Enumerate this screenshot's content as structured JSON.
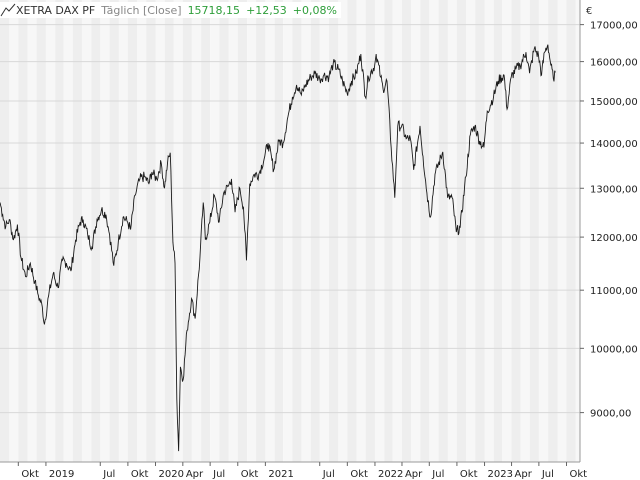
{
  "legend": {
    "name": "XETRA DAX PF",
    "frequency": "Täglich [Close]",
    "last_value": "15718,15",
    "change": "+12,53",
    "change_pct": "+0,08%"
  },
  "currency_symbol": "€",
  "colors": {
    "line": "#1a1a1a",
    "positive": "#2e9e3a",
    "band_dark": "#eeeeee",
    "band_light": "#f7f7f7",
    "grid": "#d8d8d8"
  },
  "chart_data": {
    "type": "line",
    "y_scale": "log",
    "ylim": [
      8300,
      17700
    ],
    "y_ticks": [
      9000,
      10000,
      11000,
      12000,
      13000,
      14000,
      15000,
      16000,
      17000
    ],
    "y_tick_labels": [
      "9000,00",
      "10000,00",
      "11000,00",
      "12000,00",
      "13000,00",
      "14000,00",
      "15000,00",
      "16000,00",
      "17000,00"
    ],
    "x_range": [
      "2018-08-01",
      "2023-11-15"
    ],
    "x_ticks": [
      {
        "date": "2018-10-01",
        "label": "Okt"
      },
      {
        "date": "2019-01-01",
        "label": "2019"
      },
      {
        "date": "2019-07-01",
        "label": "Jul"
      },
      {
        "date": "2019-10-01",
        "label": "Okt"
      },
      {
        "date": "2020-01-01",
        "label": "2020"
      },
      {
        "date": "2020-04-01",
        "label": "Apr"
      },
      {
        "date": "2020-07-01",
        "label": "Jul"
      },
      {
        "date": "2020-10-01",
        "label": "Okt"
      },
      {
        "date": "2021-01-01",
        "label": "2021"
      },
      {
        "date": "2021-07-01",
        "label": "Jul"
      },
      {
        "date": "2021-10-01",
        "label": "Okt"
      },
      {
        "date": "2022-01-01",
        "label": "2022"
      },
      {
        "date": "2022-04-01",
        "label": "Apr"
      },
      {
        "date": "2022-07-01",
        "label": "Jul"
      },
      {
        "date": "2022-10-01",
        "label": "Okt"
      },
      {
        "date": "2023-01-01",
        "label": "2023"
      },
      {
        "date": "2023-04-01",
        "label": "Apr"
      },
      {
        "date": "2023-07-01",
        "label": "Jul"
      },
      {
        "date": "2023-10-01",
        "label": "Okt"
      }
    ],
    "series": [
      {
        "points": [
          [
            "2018-08-01",
            12700
          ],
          [
            "2018-08-10",
            12450
          ],
          [
            "2018-08-20",
            12200
          ],
          [
            "2018-09-01",
            12350
          ],
          [
            "2018-09-15",
            11950
          ],
          [
            "2018-09-28",
            12250
          ],
          [
            "2018-10-10",
            11600
          ],
          [
            "2018-10-25",
            11250
          ],
          [
            "2018-11-10",
            11500
          ],
          [
            "2018-11-25",
            11150
          ],
          [
            "2018-12-07",
            10900
          ],
          [
            "2018-12-20",
            10700
          ],
          [
            "2018-12-27",
            10400
          ],
          [
            "2019-01-10",
            10900
          ],
          [
            "2019-01-25",
            11300
          ],
          [
            "2019-02-10",
            11050
          ],
          [
            "2019-02-25",
            11550
          ],
          [
            "2019-03-10",
            11500
          ],
          [
            "2019-03-25",
            11350
          ],
          [
            "2019-04-10",
            11950
          ],
          [
            "2019-04-25",
            12300
          ],
          [
            "2019-05-05",
            12350
          ],
          [
            "2019-05-20",
            12050
          ],
          [
            "2019-06-03",
            11800
          ],
          [
            "2019-06-20",
            12350
          ],
          [
            "2019-07-05",
            12550
          ],
          [
            "2019-07-20",
            12450
          ],
          [
            "2019-08-01",
            12050
          ],
          [
            "2019-08-15",
            11450
          ],
          [
            "2019-08-30",
            11900
          ],
          [
            "2019-09-15",
            12400
          ],
          [
            "2019-09-30",
            12300
          ],
          [
            "2019-10-10",
            12150
          ],
          [
            "2019-10-25",
            12850
          ],
          [
            "2019-11-10",
            13200
          ],
          [
            "2019-11-25",
            13250
          ],
          [
            "2019-12-10",
            13100
          ],
          [
            "2019-12-20",
            13350
          ],
          [
            "2020-01-05",
            13200
          ],
          [
            "2020-01-20",
            13550
          ],
          [
            "2020-01-31",
            13000
          ],
          [
            "2020-02-10",
            13550
          ],
          [
            "2020-02-19",
            13780
          ],
          [
            "2020-02-28",
            11900
          ],
          [
            "2020-03-06",
            11500
          ],
          [
            "2020-03-12",
            9200
          ],
          [
            "2020-03-18",
            8450
          ],
          [
            "2020-03-24",
            9700
          ],
          [
            "2020-04-02",
            9500
          ],
          [
            "2020-04-15",
            10300
          ],
          [
            "2020-04-30",
            10850
          ],
          [
            "2020-05-12",
            10500
          ],
          [
            "2020-05-28",
            11600
          ],
          [
            "2020-06-08",
            12700
          ],
          [
            "2020-06-15",
            11950
          ],
          [
            "2020-06-30",
            12300
          ],
          [
            "2020-07-15",
            12850
          ],
          [
            "2020-07-31",
            12300
          ],
          [
            "2020-08-15",
            12900
          ],
          [
            "2020-08-31",
            13050
          ],
          [
            "2020-09-10",
            13200
          ],
          [
            "2020-09-22",
            12500
          ],
          [
            "2020-10-08",
            13000
          ],
          [
            "2020-10-20",
            12600
          ],
          [
            "2020-10-30",
            11550
          ],
          [
            "2020-11-10",
            13100
          ],
          [
            "2020-11-25",
            13300
          ],
          [
            "2020-12-10",
            13300
          ],
          [
            "2020-12-30",
            13700
          ],
          [
            "2021-01-10",
            14000
          ],
          [
            "2021-01-29",
            13400
          ],
          [
            "2021-02-15",
            14050
          ],
          [
            "2021-03-01",
            14000
          ],
          [
            "2021-03-15",
            14550
          ],
          [
            "2021-04-01",
            15100
          ],
          [
            "2021-04-15",
            15400
          ],
          [
            "2021-05-01",
            15150
          ],
          [
            "2021-05-15",
            15400
          ],
          [
            "2021-06-01",
            15600
          ],
          [
            "2021-06-15",
            15700
          ],
          [
            "2021-07-01",
            15550
          ],
          [
            "2021-07-15",
            15650
          ],
          [
            "2021-08-01",
            15600
          ],
          [
            "2021-08-15",
            15950
          ],
          [
            "2021-09-01",
            15800
          ],
          [
            "2021-09-15",
            15500
          ],
          [
            "2021-09-30",
            15200
          ],
          [
            "2021-10-15",
            15500
          ],
          [
            "2021-10-31",
            15700
          ],
          [
            "2021-11-15",
            16200
          ],
          [
            "2021-11-30",
            15100
          ],
          [
            "2021-12-10",
            15600
          ],
          [
            "2021-12-31",
            15900
          ],
          [
            "2022-01-05",
            16200
          ],
          [
            "2022-01-20",
            15600
          ],
          [
            "2022-01-28",
            15300
          ],
          [
            "2022-02-10",
            15500
          ],
          [
            "2022-02-24",
            13900
          ],
          [
            "2022-03-08",
            12800
          ],
          [
            "2022-03-18",
            14400
          ],
          [
            "2022-03-31",
            14400
          ],
          [
            "2022-04-15",
            14100
          ],
          [
            "2022-04-29",
            14100
          ],
          [
            "2022-05-10",
            13400
          ],
          [
            "2022-05-31",
            14400
          ],
          [
            "2022-06-10",
            13700
          ],
          [
            "2022-06-23",
            12900
          ],
          [
            "2022-07-05",
            12400
          ],
          [
            "2022-07-20",
            13300
          ],
          [
            "2022-08-15",
            13800
          ],
          [
            "2022-08-31",
            12800
          ],
          [
            "2022-09-15",
            12800
          ],
          [
            "2022-09-29",
            12100
          ],
          [
            "2022-10-12",
            12200
          ],
          [
            "2022-10-31",
            13250
          ],
          [
            "2022-11-15",
            14200
          ],
          [
            "2022-11-30",
            14400
          ],
          [
            "2022-12-15",
            14050
          ],
          [
            "2022-12-30",
            13900
          ],
          [
            "2023-01-10",
            14750
          ],
          [
            "2023-01-31",
            15100
          ],
          [
            "2023-02-15",
            15500
          ],
          [
            "2023-03-07",
            15650
          ],
          [
            "2023-03-17",
            14800
          ],
          [
            "2023-03-31",
            15600
          ],
          [
            "2023-04-15",
            15800
          ],
          [
            "2023-04-30",
            15900
          ],
          [
            "2023-05-19",
            16250
          ],
          [
            "2023-05-31",
            15700
          ],
          [
            "2023-06-16",
            16350
          ],
          [
            "2023-06-30",
            16150
          ],
          [
            "2023-07-10",
            15650
          ],
          [
            "2023-07-20",
            16250
          ],
          [
            "2023-07-31",
            16450
          ],
          [
            "2023-08-10",
            15900
          ],
          [
            "2023-08-18",
            15570
          ],
          [
            "2023-08-25",
            15718
          ]
        ]
      }
    ]
  }
}
